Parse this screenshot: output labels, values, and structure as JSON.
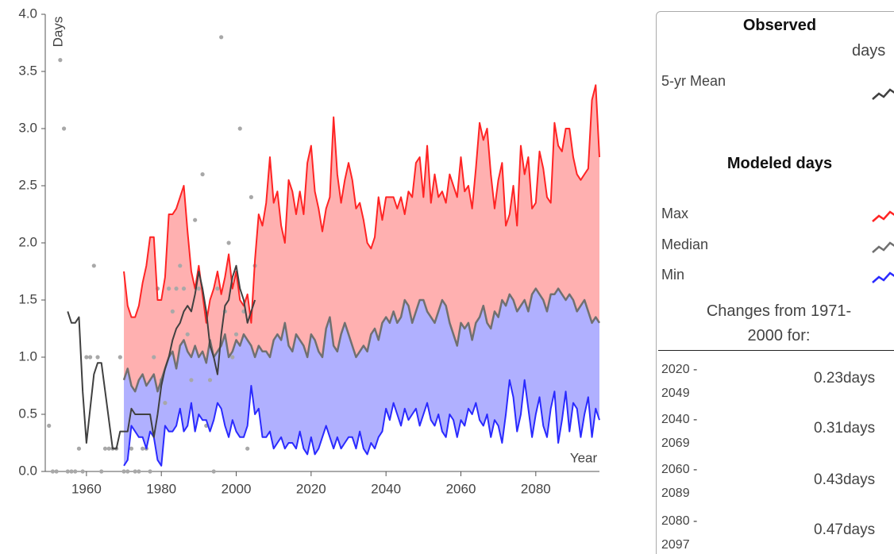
{
  "chart_data": {
    "type": "line",
    "y_label": "Days",
    "x_label": "Year",
    "xlim": [
      1949,
      2097
    ],
    "xticks": [
      1960,
      1980,
      2000,
      2020,
      2040,
      2060,
      2080
    ],
    "ylim": [
      0,
      4
    ],
    "yticks": [
      {
        "value": 0,
        "label": "0.0"
      },
      0.5,
      {
        "value": 1,
        "label": "1.0"
      },
      1.5,
      {
        "value": 2,
        "label": "2.0"
      },
      2.5,
      {
        "value": 3,
        "label": "3.0"
      },
      3.5,
      {
        "value": 4,
        "label": "4.0"
      }
    ],
    "x": [
      1970,
      1971,
      1972,
      1973,
      1974,
      1975,
      1976,
      1977,
      1978,
      1979,
      1980,
      1981,
      1982,
      1983,
      1984,
      1985,
      1986,
      1987,
      1988,
      1989,
      1990,
      1991,
      1992,
      1993,
      1994,
      1995,
      1996,
      1997,
      1998,
      1999,
      2000,
      2001,
      2002,
      2003,
      2004,
      2005,
      2006,
      2007,
      2008,
      2009,
      2010,
      2011,
      2012,
      2013,
      2014,
      2015,
      2016,
      2017,
      2018,
      2019,
      2020,
      2021,
      2022,
      2023,
      2024,
      2025,
      2026,
      2027,
      2028,
      2029,
      2030,
      2031,
      2032,
      2033,
      2034,
      2035,
      2036,
      2037,
      2038,
      2039,
      2040,
      2041,
      2042,
      2043,
      2044,
      2045,
      2046,
      2047,
      2048,
      2049,
      2050,
      2051,
      2052,
      2053,
      2054,
      2055,
      2056,
      2057,
      2058,
      2059,
      2060,
      2061,
      2062,
      2063,
      2064,
      2065,
      2066,
      2067,
      2068,
      2069,
      2070,
      2071,
      2072,
      2073,
      2074,
      2075,
      2076,
      2077,
      2078,
      2079,
      2080,
      2081,
      2082,
      2083,
      2084,
      2085,
      2086,
      2087,
      2088,
      2089,
      2090,
      2091,
      2092,
      2093,
      2094,
      2095,
      2096,
      2097
    ],
    "series": [
      {
        "name": "Max",
        "color": "#ff2424",
        "fill": "#ffb0b0",
        "values": [
          1.75,
          1.45,
          1.35,
          1.35,
          1.45,
          1.65,
          1.8,
          2.05,
          2.05,
          1.5,
          1.5,
          1.7,
          2.25,
          2.25,
          2.3,
          2.4,
          2.5,
          2.1,
          1.75,
          1.6,
          1.8,
          1.55,
          1.3,
          1.5,
          1.6,
          1.75,
          1.55,
          1.7,
          1.9,
          1.6,
          1.75,
          1.5,
          1.45,
          1.55,
          1.3,
          1.85,
          2.25,
          2.15,
          2.35,
          2.75,
          2.35,
          2.45,
          2.15,
          2.0,
          2.55,
          2.45,
          2.25,
          2.45,
          2.25,
          2.7,
          2.85,
          2.45,
          2.3,
          2.1,
          2.3,
          2.4,
          3.1,
          2.6,
          2.35,
          2.55,
          2.7,
          2.55,
          2.3,
          2.35,
          2.2,
          2.0,
          1.95,
          2.05,
          2.4,
          2.2,
          2.4,
          2.4,
          2.4,
          2.3,
          2.4,
          2.25,
          2.45,
          2.4,
          2.7,
          2.75,
          2.4,
          2.85,
          2.35,
          2.6,
          2.4,
          2.45,
          2.35,
          2.6,
          2.5,
          2.4,
          2.75,
          2.45,
          2.5,
          2.3,
          2.65,
          3.05,
          2.9,
          3.0,
          2.6,
          2.3,
          2.55,
          2.7,
          2.15,
          2.25,
          2.5,
          2.15,
          2.85,
          2.6,
          2.75,
          2.3,
          2.35,
          2.8,
          2.65,
          2.4,
          2.35,
          3.05,
          2.85,
          2.8,
          3.0,
          3.0,
          2.75,
          2.6,
          2.55,
          2.6,
          2.65,
          3.25,
          3.38,
          2.75
        ]
      },
      {
        "name": "Median",
        "color": "#707070",
        "fill": "#b0b0ff",
        "values": [
          0.8,
          0.9,
          0.75,
          0.7,
          0.8,
          0.85,
          0.75,
          0.8,
          0.85,
          0.7,
          0.8,
          0.9,
          1.0,
          1.05,
          0.9,
          1.1,
          1.15,
          1.05,
          1.0,
          1.1,
          1.0,
          1.05,
          0.95,
          1.15,
          1.0,
          1.05,
          1.1,
          1.2,
          1.0,
          1.05,
          1.15,
          1.1,
          1.2,
          1.15,
          1.1,
          1.0,
          1.1,
          1.05,
          1.05,
          1.0,
          1.15,
          1.2,
          1.15,
          1.3,
          1.1,
          1.05,
          1.2,
          1.15,
          1.1,
          1.0,
          1.2,
          1.15,
          1.05,
          1.0,
          1.25,
          1.35,
          1.1,
          1.05,
          1.2,
          1.3,
          1.2,
          1.1,
          1.0,
          1.05,
          1.1,
          1.05,
          1.2,
          1.25,
          1.15,
          1.3,
          1.35,
          1.3,
          1.4,
          1.3,
          1.35,
          1.5,
          1.45,
          1.3,
          1.4,
          1.5,
          1.5,
          1.4,
          1.35,
          1.3,
          1.4,
          1.5,
          1.45,
          1.3,
          1.2,
          1.1,
          1.3,
          1.25,
          1.3,
          1.15,
          1.3,
          1.35,
          1.45,
          1.3,
          1.25,
          1.4,
          1.35,
          1.5,
          1.45,
          1.55,
          1.5,
          1.4,
          1.45,
          1.5,
          1.4,
          1.55,
          1.6,
          1.55,
          1.5,
          1.4,
          1.55,
          1.55,
          1.6,
          1.55,
          1.5,
          1.55,
          1.5,
          1.4,
          1.45,
          1.5,
          1.4,
          1.3,
          1.35,
          1.3
        ]
      },
      {
        "name": "Min",
        "color": "#2a2aff",
        "values": [
          0.05,
          0.1,
          0.4,
          0.35,
          0.3,
          0.3,
          0.2,
          0.35,
          0.3,
          0.1,
          0.05,
          0.4,
          0.35,
          0.35,
          0.4,
          0.55,
          0.35,
          0.4,
          0.6,
          0.35,
          0.5,
          0.45,
          0.45,
          0.35,
          0.45,
          0.6,
          0.55,
          0.4,
          0.3,
          0.45,
          0.35,
          0.3,
          0.3,
          0.4,
          0.75,
          0.5,
          0.55,
          0.3,
          0.3,
          0.35,
          0.2,
          0.25,
          0.3,
          0.2,
          0.25,
          0.25,
          0.2,
          0.35,
          0.2,
          0.15,
          0.3,
          0.15,
          0.2,
          0.3,
          0.4,
          0.3,
          0.2,
          0.3,
          0.2,
          0.25,
          0.3,
          0.3,
          0.2,
          0.35,
          0.2,
          0.15,
          0.25,
          0.2,
          0.3,
          0.35,
          0.55,
          0.45,
          0.6,
          0.5,
          0.4,
          0.55,
          0.45,
          0.5,
          0.55,
          0.4,
          0.5,
          0.6,
          0.45,
          0.4,
          0.5,
          0.35,
          0.3,
          0.5,
          0.45,
          0.3,
          0.45,
          0.4,
          0.55,
          0.5,
          0.6,
          0.45,
          0.4,
          0.5,
          0.3,
          0.45,
          0.4,
          0.25,
          0.5,
          0.8,
          0.65,
          0.35,
          0.5,
          0.8,
          0.55,
          0.3,
          0.5,
          0.65,
          0.4,
          0.3,
          0.55,
          0.7,
          0.25,
          0.45,
          0.7,
          0.35,
          0.6,
          0.55,
          0.3,
          0.5,
          0.65,
          0.3,
          0.55,
          0.45
        ]
      },
      {
        "name": "5-yr Mean",
        "color": "#404040",
        "x": [
          1955,
          1956,
          1957,
          1958,
          1959,
          1960,
          1961,
          1962,
          1963,
          1964,
          1965,
          1966,
          1967,
          1968,
          1969,
          1970,
          1971,
          1972,
          1973,
          1974,
          1975,
          1976,
          1977,
          1978,
          1979,
          1980,
          1981,
          1982,
          1983,
          1984,
          1985,
          1986,
          1987,
          1988,
          1989,
          1990,
          1991,
          1992,
          1993,
          1994,
          1995,
          1996,
          1997,
          1998,
          1999,
          2000,
          2001,
          2002,
          2003,
          2004,
          2005
        ],
        "values": [
          1.4,
          1.3,
          1.3,
          1.35,
          0.7,
          0.25,
          0.55,
          0.85,
          0.95,
          0.95,
          0.7,
          0.45,
          0.2,
          0.2,
          0.35,
          0.35,
          0.35,
          0.55,
          0.5,
          0.5,
          0.5,
          0.5,
          0.5,
          0.3,
          0.5,
          0.75,
          0.9,
          1.0,
          1.15,
          1.25,
          1.3,
          1.4,
          1.45,
          1.4,
          1.55,
          1.75,
          1.6,
          1.4,
          1.1,
          1.0,
          0.85,
          1.2,
          1.45,
          1.5,
          1.7,
          1.8,
          1.6,
          1.5,
          1.3,
          1.4,
          1.5
        ]
      },
      {
        "kind": "scatter",
        "color": "#a8a8a8",
        "x": [
          1950,
          1951,
          1952,
          1953,
          1954,
          1955,
          1956,
          1957,
          1958,
          1959,
          1960,
          1961,
          1962,
          1963,
          1964,
          1965,
          1966,
          1967,
          1968,
          1969,
          1970,
          1971,
          1972,
          1973,
          1974,
          1975,
          1976,
          1977,
          1978,
          1979,
          1980,
          1981,
          1982,
          1983,
          1984,
          1985,
          1986,
          1987,
          1988,
          1989,
          1990,
          1991,
          1992,
          1993,
          1994,
          1995,
          1996,
          1997,
          1998,
          1999,
          2000,
          2001,
          2002,
          2003,
          2004,
          2005
        ],
        "values": [
          0.4,
          0,
          0,
          3.6,
          3.0,
          0,
          0,
          0,
          0.2,
          0,
          1.0,
          1.0,
          1.8,
          1.0,
          0,
          0.2,
          0.2,
          0.2,
          0.2,
          1.0,
          0,
          0,
          0.2,
          0,
          0,
          0.2,
          0.2,
          0,
          1.0,
          1.6,
          0.8,
          0.6,
          1.6,
          1.4,
          1.6,
          1.8,
          1.6,
          1.2,
          0.8,
          2.2,
          1.6,
          2.6,
          0.4,
          0.8,
          0,
          1.6,
          3.8,
          1.4,
          2.0,
          1.0,
          1.2,
          3.0,
          1.4,
          0.2,
          2.4,
          1.8
        ]
      }
    ],
    "legend": {
      "observed_title": "Observed",
      "unit": "days",
      "modeled_title": "Modeled days"
    },
    "changes": {
      "title": "Changes from 1971-2000 for:",
      "rows": [
        {
          "period": "2020 - 2049",
          "value": "0.23days"
        },
        {
          "period": "2040 - 2069",
          "value": "0.31days"
        },
        {
          "period": "2060 - 2089",
          "value": "0.43days"
        },
        {
          "period": "2080 - 2097",
          "value": "0.47days"
        }
      ]
    }
  }
}
